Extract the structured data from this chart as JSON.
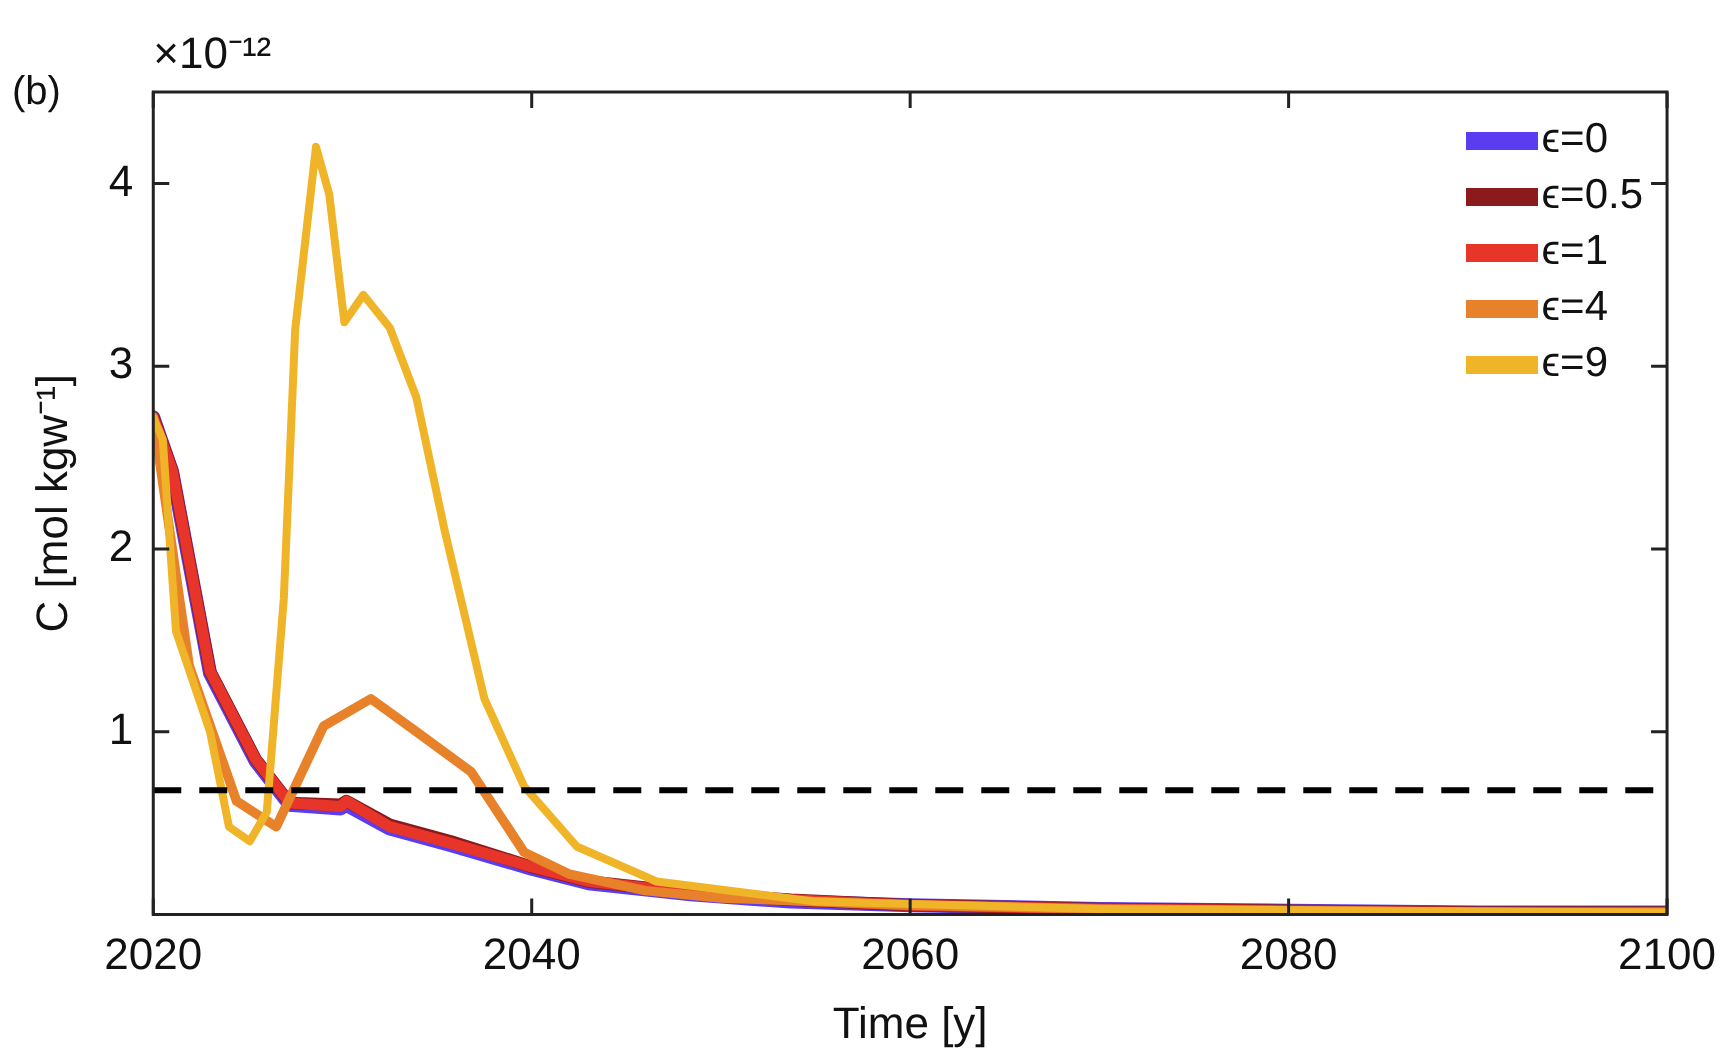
{
  "chart_data": {
    "type": "line",
    "xlabel": "Time [y]",
    "ylabel": "C [mol kgw⁻¹]",
    "annotations": [
      "(b)",
      "×10⁻¹²"
    ],
    "xlim": [
      2020,
      2100
    ],
    "xticks": [
      2020,
      2040,
      2060,
      2080,
      2100
    ],
    "ylim": [
      0,
      4.5
    ],
    "yticks": [
      1,
      2,
      3,
      4
    ],
    "grid": false,
    "legend": "top right",
    "marker": "none",
    "line_style": "solid",
    "ref_lines": [
      {
        "axis": "y",
        "value": 0.68,
        "color": "#000000",
        "line_style": "dashed"
      }
    ],
    "series": [
      {
        "name": "ϵ=0",
        "color": "#5b3cf0",
        "x": [
          2020,
          2021,
          2023,
          2025.4,
          2027.2,
          2029.9,
          2030.2,
          2032.5,
          2035.7,
          2040,
          2043,
          2048.4,
          2053.7,
          2060,
          2070,
          2080,
          2090,
          2100
        ],
        "values": [
          2.72,
          2.42,
          1.32,
          0.84,
          0.6,
          0.58,
          0.6,
          0.47,
          0.38,
          0.25,
          0.17,
          0.11,
          0.07,
          0.05,
          0.03,
          0.02,
          0.01,
          0.01
        ]
      },
      {
        "name": "ϵ=0.5",
        "color": "#8b1a1a",
        "x": [
          2020,
          2021,
          2023,
          2025.4,
          2027.2,
          2029.9,
          2030.2,
          2032.5,
          2035.7,
          2040,
          2043,
          2048.4,
          2053.7,
          2060,
          2070,
          2080,
          2090,
          2100
        ],
        "values": [
          2.72,
          2.43,
          1.33,
          0.85,
          0.61,
          0.6,
          0.62,
          0.49,
          0.4,
          0.26,
          0.18,
          0.12,
          0.08,
          0.05,
          0.03,
          0.02,
          0.01,
          0.01
        ]
      },
      {
        "name": "ϵ=1",
        "color": "#e8352a",
        "x": [
          2020,
          2021,
          2023,
          2025.4,
          2027.2,
          2029.9,
          2030.2,
          2032.5,
          2035.7,
          2040,
          2043,
          2048.4,
          2053.7,
          2060,
          2070,
          2080,
          2090,
          2100
        ],
        "values": [
          2.72,
          2.43,
          1.33,
          0.85,
          0.61,
          0.59,
          0.62,
          0.48,
          0.39,
          0.26,
          0.18,
          0.12,
          0.08,
          0.05,
          0.03,
          0.02,
          0.01,
          0.01
        ]
      },
      {
        "name": "ϵ=4",
        "color": "#e8822a",
        "x": [
          2020,
          2021.9,
          2024.4,
          2026.5,
          2029,
          2031.5,
          2033.9,
          2036.8,
          2039.6,
          2042,
          2046,
          2050,
          2060,
          2070,
          2080,
          2090,
          2100
        ],
        "values": [
          2.72,
          1.36,
          0.62,
          0.48,
          1.03,
          1.18,
          1.0,
          0.78,
          0.34,
          0.22,
          0.13,
          0.09,
          0.05,
          0.03,
          0.02,
          0.01,
          0.01
        ]
      },
      {
        "name": "ϵ=9",
        "color": "#f0b428",
        "x": [
          2020,
          2020.5,
          2021.2,
          2023,
          2024,
          2025.1,
          2026,
          2026.9,
          2027.5,
          2028.6,
          2029.3,
          2030.1,
          2031.1,
          2032.5,
          2033.9,
          2035.4,
          2037.5,
          2039.6,
          2042.4,
          2046.6,
          2055,
          2070,
          2085,
          2100
        ],
        "values": [
          2.72,
          2.6,
          1.55,
          1.0,
          0.48,
          0.4,
          0.56,
          1.73,
          3.2,
          4.2,
          3.94,
          3.24,
          3.39,
          3.21,
          2.83,
          2.1,
          1.18,
          0.7,
          0.37,
          0.18,
          0.07,
          0.03,
          0.02,
          0.01
        ]
      }
    ]
  }
}
